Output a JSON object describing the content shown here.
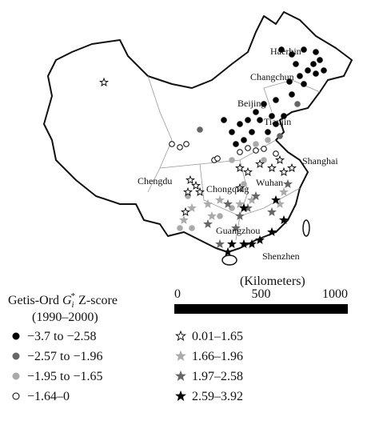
{
  "map": {
    "cities": [
      "Haerbin",
      "Changchun",
      "Beijing",
      "Tianjin",
      "Shanghai",
      "Chengdu",
      "Chongqing",
      "Wuhan",
      "Guangzhou",
      "Shenzhen"
    ],
    "legend": {
      "title": {
        "prefix": "Getis-Ord ",
        "symbol": "G",
        "subscript": "i",
        "superscript": "*",
        "suffix": " Z-score"
      },
      "period": "(1990–2000)",
      "items": [
        "−3.7 to −2.58",
        "−2.57 to −1.96",
        "−1.95 to −1.65",
        "−1.64–0",
        "0.01–1.65",
        "1.66–1.96",
        "1.97–2.58",
        "2.59–3.92"
      ]
    },
    "scale_bar": {
      "unit": "(Kilometers)",
      "ticks": [
        0,
        500,
        1000
      ]
    }
  }
}
